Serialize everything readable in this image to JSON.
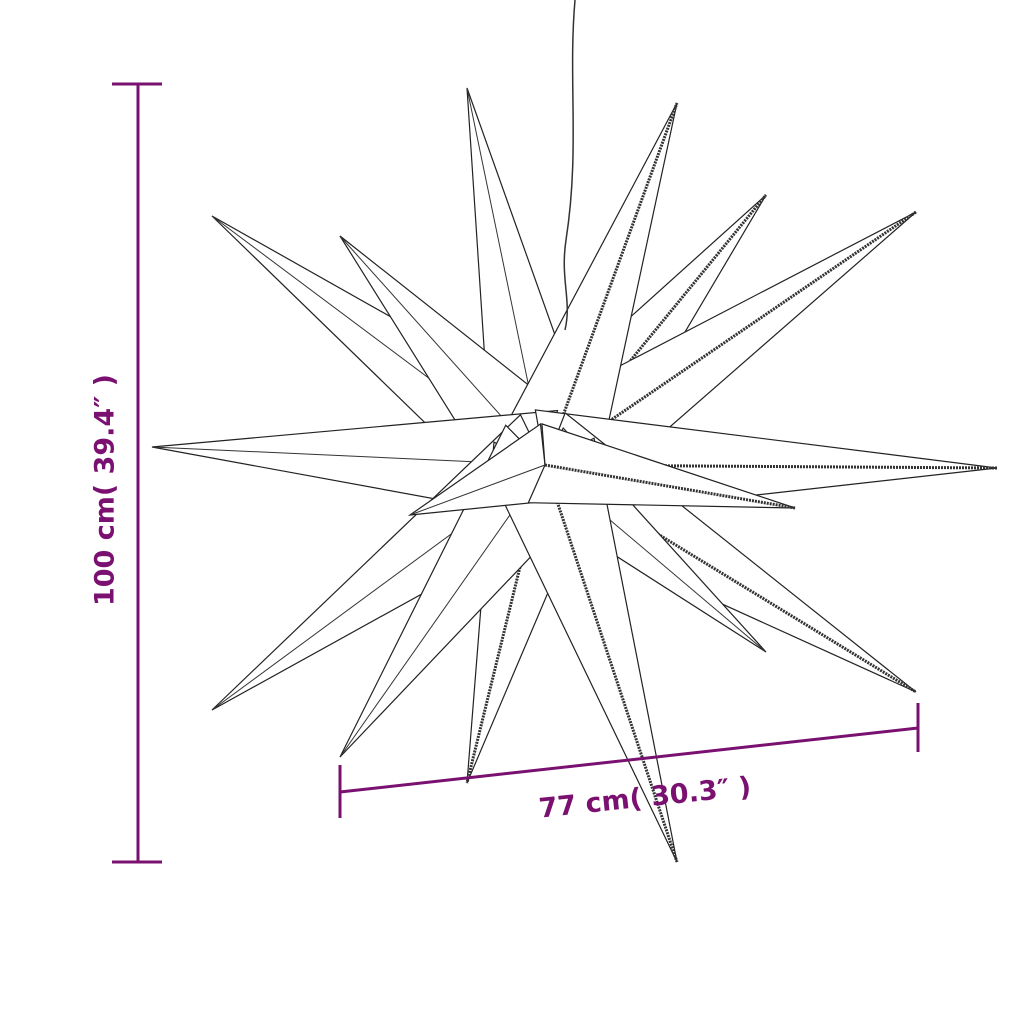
{
  "dimensions": {
    "height_label": "100 cm( 39.4″ )",
    "width_label": "77 cm( 30.3″ )"
  },
  "colors": {
    "dimension": "#7a1070",
    "outline": "#222222"
  },
  "product": {
    "icon": "star-lamp-outline"
  }
}
